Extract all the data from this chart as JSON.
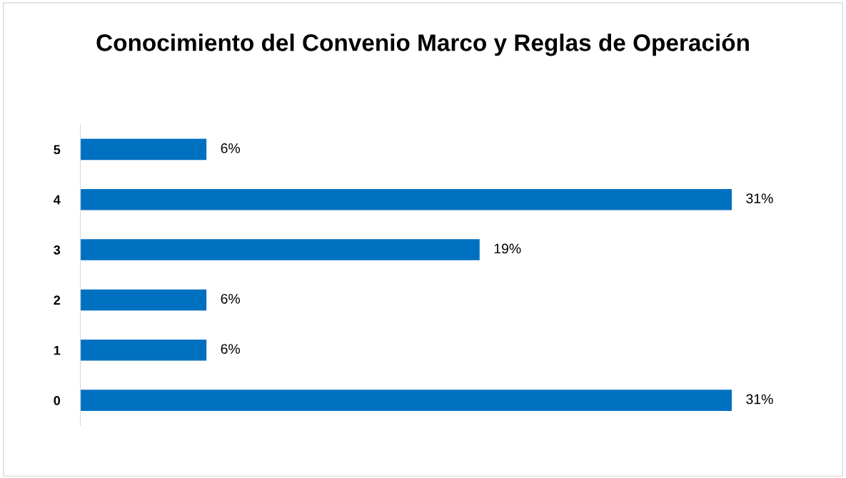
{
  "chart_data": {
    "type": "bar",
    "orientation": "horizontal",
    "title": "Conocimiento del Convenio Marco y Reglas de Operación",
    "categories": [
      "5",
      "4",
      "3",
      "2",
      "1",
      "0"
    ],
    "values": [
      6,
      31,
      19,
      6,
      6,
      31
    ],
    "value_labels": [
      "6%",
      "31%",
      "19%",
      "6%",
      "6%",
      "31%"
    ],
    "color": "#0070c0",
    "grid": false,
    "legend": false,
    "tick_labels": "y"
  }
}
